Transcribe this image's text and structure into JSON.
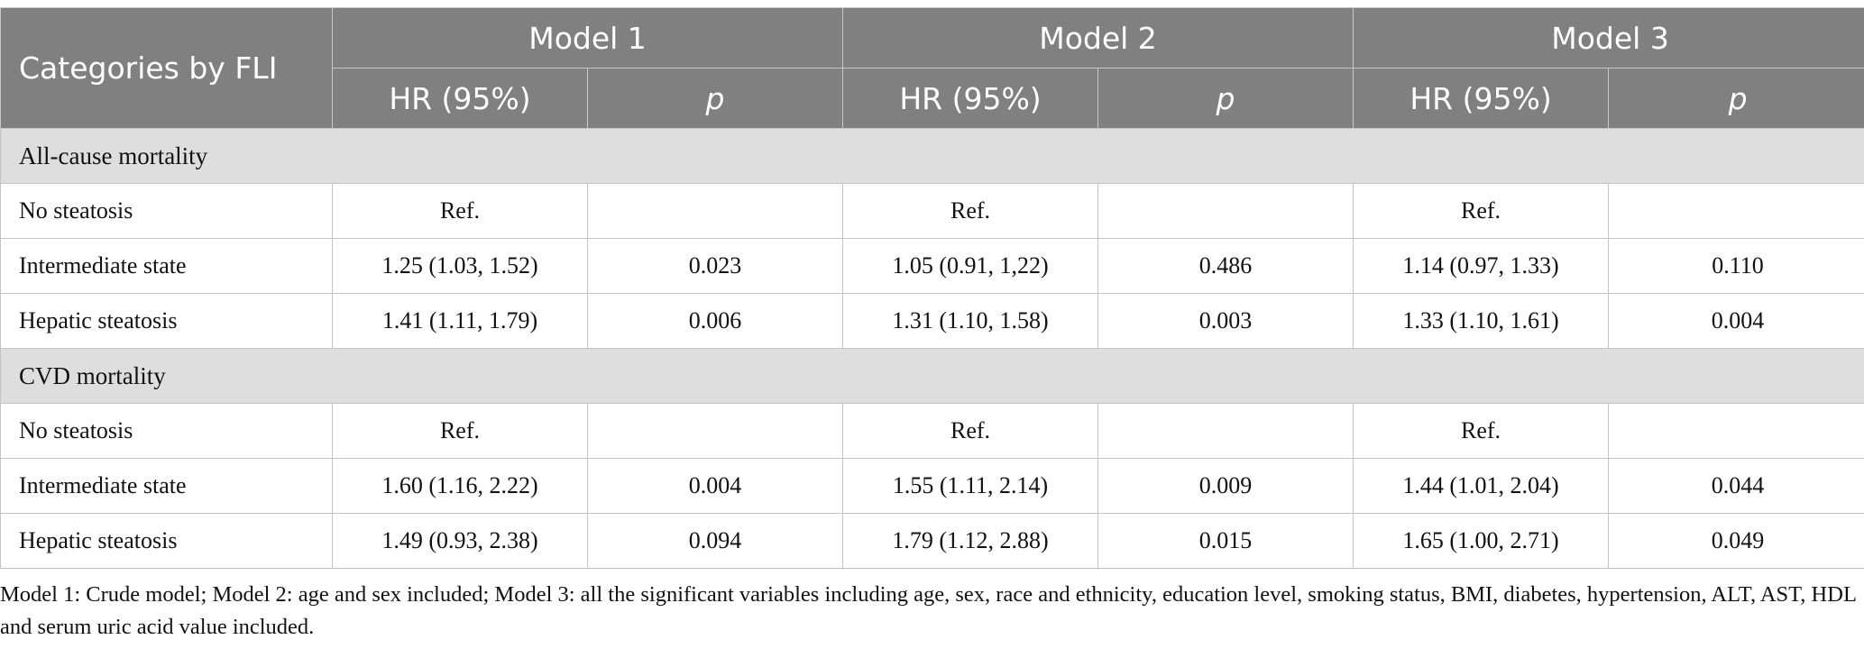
{
  "header": {
    "category_label": "Categories by FLI",
    "models": [
      "Model 1",
      "Model 2",
      "Model 3"
    ],
    "hr_label": "HR (95%)",
    "p_label": "p"
  },
  "sections": [
    {
      "title": "All-cause mortality",
      "rows": [
        {
          "label": "No steatosis",
          "cells": [
            "Ref.",
            "",
            "Ref.",
            "",
            "Ref.",
            ""
          ]
        },
        {
          "label": "Intermediate state",
          "cells": [
            "1.25 (1.03, 1.52)",
            "0.023",
            "1.05 (0.91, 1,22)",
            "0.486",
            "1.14 (0.97, 1.33)",
            "0.110"
          ]
        },
        {
          "label": "Hepatic steatosis",
          "cells": [
            "1.41 (1.11, 1.79)",
            "0.006",
            "1.31 (1.10, 1.58)",
            "0.003",
            "1.33 (1.10, 1.61)",
            "0.004"
          ]
        }
      ]
    },
    {
      "title": "CVD mortality",
      "rows": [
        {
          "label": "No steatosis",
          "cells": [
            "Ref.",
            "",
            "Ref.",
            "",
            "Ref.",
            ""
          ]
        },
        {
          "label": "Intermediate state",
          "cells": [
            "1.60 (1.16, 2.22)",
            "0.004",
            "1.55 (1.11, 2.14)",
            "0.009",
            "1.44 (1.01, 2.04)",
            "0.044"
          ]
        },
        {
          "label": "Hepatic steatosis",
          "cells": [
            "1.49 (0.93, 2.38)",
            "0.094",
            "1.79 (1.12, 2.88)",
            "0.015",
            "1.65 (1.00, 2.71)",
            "0.049"
          ]
        }
      ]
    }
  ],
  "footnote": "Model 1: Crude model; Model 2: age and sex included; Model 3: all the significant variables including age, sex, race and ethnicity, education level, smoking status, BMI, diabetes, hypertension, ALT, AST, HDL and serum uric acid value included."
}
